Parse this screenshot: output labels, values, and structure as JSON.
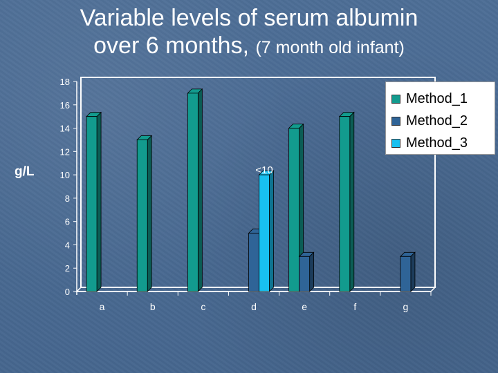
{
  "slide": {
    "title_line1": "Variable levels of serum albumin",
    "title_line2_main": "over 6 months,",
    "title_line2_sub": "(7 month old infant)"
  },
  "chart_data": {
    "type": "bar",
    "ylabel": "g/L",
    "xlabel": "",
    "ylim": [
      0,
      18
    ],
    "yticks": [
      0,
      2,
      4,
      6,
      8,
      10,
      12,
      14,
      16,
      18
    ],
    "categories": [
      "a",
      "b",
      "c",
      "d",
      "e",
      "f",
      "g"
    ],
    "series": [
      {
        "name": "Method_1",
        "color": "#129b8e",
        "values": [
          15,
          13,
          17,
          null,
          14,
          15,
          null
        ]
      },
      {
        "name": "Method_2",
        "color": "#2f6497",
        "values": [
          null,
          null,
          null,
          5,
          3,
          null,
          3
        ]
      },
      {
        "name": "Method_3",
        "color": "#18c0f0",
        "values": [
          null,
          null,
          null,
          10,
          null,
          null,
          null
        ]
      }
    ],
    "annotations": [
      {
        "category": "d",
        "series": "Method_3",
        "text": "<10"
      }
    ],
    "legend_position": "top-right",
    "grid": false
  }
}
